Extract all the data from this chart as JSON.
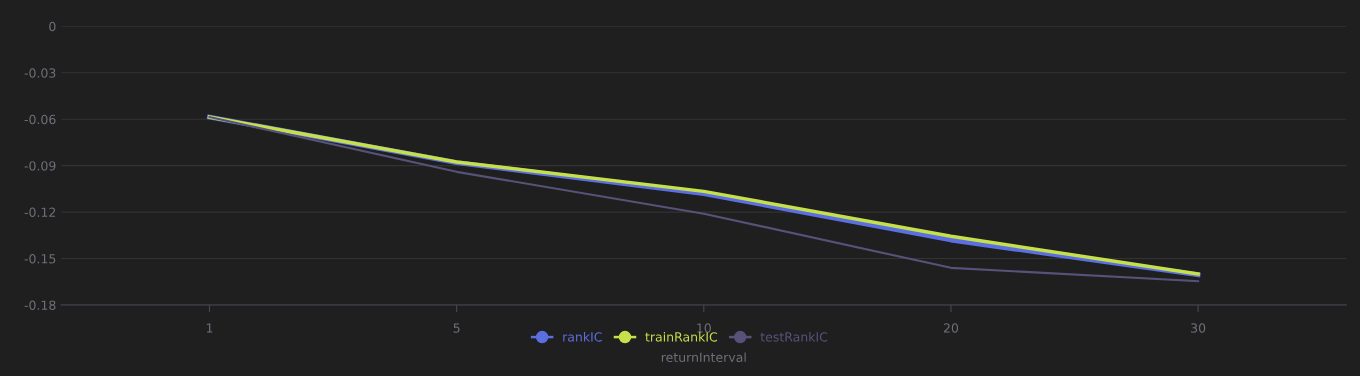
{
  "chart_data": {
    "type": "line",
    "xlabel": "returnInterval",
    "categories": [
      "1",
      "5",
      "10",
      "20",
      "30"
    ],
    "series": [
      {
        "name": "rankIC",
        "color": "#5b6fe0",
        "values": [
          -0.0586,
          -0.088,
          -0.108,
          -0.138,
          -0.1605
        ]
      },
      {
        "name": "trainRankIC",
        "color": "#c5e04a",
        "values": [
          -0.0586,
          -0.0876,
          -0.1066,
          -0.1356,
          -0.16
        ]
      },
      {
        "name": "testRankIC",
        "color": "#56527a",
        "values": [
          -0.0586,
          -0.094,
          -0.121,
          -0.156,
          -0.1646
        ]
      }
    ],
    "ylim": [
      -0.18,
      0
    ],
    "yticks": [
      -0.18,
      -0.15,
      -0.12,
      -0.09,
      -0.06,
      -0.03,
      0
    ],
    "grid": "y",
    "legend": "bottom",
    "marker": "none"
  }
}
